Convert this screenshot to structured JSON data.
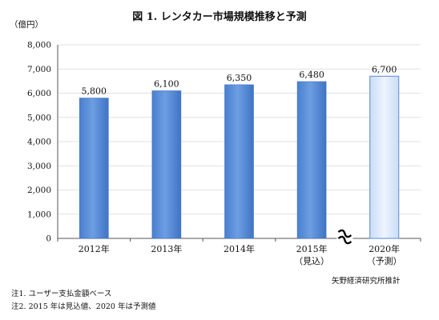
{
  "chart_data": {
    "type": "bar",
    "title": "図 1. レンタカー市場規模推移と予測",
    "unit_label": "（億円）",
    "categories": [
      "2012年",
      "2013年",
      "2014年",
      "2015年",
      "2020年"
    ],
    "category_sublabels": [
      "",
      "",
      "",
      "（見込）",
      "（予測）"
    ],
    "values": [
      5800,
      6100,
      6350,
      6480,
      6700
    ],
    "data_labels": [
      "5,800",
      "6,100",
      "6,350",
      "6,480",
      "6,700"
    ],
    "ylim": [
      0,
      8000
    ],
    "yticks": [
      "0",
      "1,000",
      "2,000",
      "3,000",
      "4,000",
      "5,000",
      "6,000",
      "7,000",
      "8,000"
    ],
    "ytick_values": [
      0,
      1000,
      2000,
      3000,
      4000,
      5000,
      6000,
      7000,
      8000
    ],
    "grid": true,
    "axis_break_before_index": 4,
    "forecast_index": 4,
    "colors": {
      "bar": "#5b8fd9",
      "bar_dark": "#3d73c2",
      "bar_forecast": "#dbe8fa",
      "forecast_border": "#6f9bd8",
      "grid": "#d8d8d8",
      "axis": "#555555"
    }
  },
  "notes": [
    "注1. ユーザー支払金額ベース",
    "注2. 2015 年は見込値、2020 年は予測値"
  ],
  "source": "矢野経済研究所推計"
}
